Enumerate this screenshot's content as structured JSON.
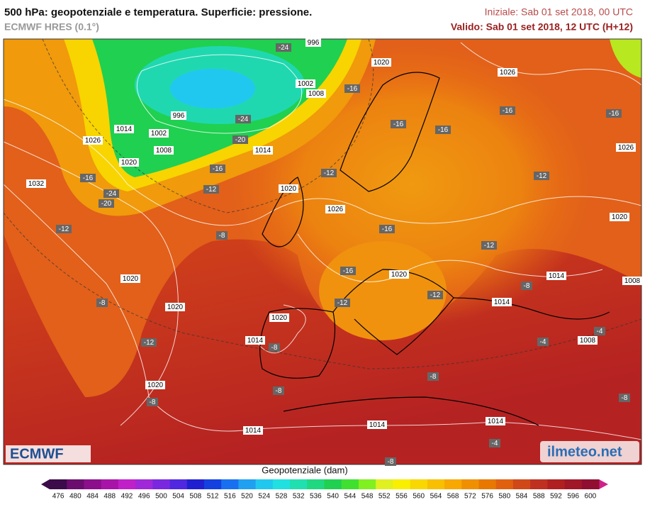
{
  "header": {
    "title": "500 hPa: geopotenziale e temperatura. Superficie: pressione.",
    "model": "ECMWF HRES (0.1°)",
    "init": "Iniziale: Sab 01 set 2018, 00 UTC",
    "valid": "Valido: Sab 01 set 2018, 12 UTC (H+12)"
  },
  "map": {
    "pressure_labels": [
      "996",
      "1020",
      "1026",
      "1002",
      "1008",
      "996",
      "1014",
      "1002",
      "1008",
      "1026",
      "1014",
      "1026",
      "1020",
      "1032",
      "1020",
      "1026",
      "1020",
      "1020",
      "1014",
      "1020",
      "1008",
      "1014",
      "1020",
      "1020",
      "1014",
      "1008",
      "1020",
      "1014",
      "1014",
      "1014"
    ],
    "temperature_labels": [
      "-24",
      "-16",
      "-16",
      "-16",
      "-16",
      "-16",
      "-24",
      "-20",
      "-16",
      "-12",
      "-12",
      "-12",
      "-16",
      "-24",
      "-20",
      "-12",
      "-8",
      "-16",
      "-12",
      "-16",
      "-12",
      "-12",
      "-8",
      "-8",
      "-12",
      "-8",
      "-4",
      "-4",
      "-8",
      "-8",
      "-8",
      "-8",
      "-4",
      "-8"
    ],
    "logos": [
      "ECMWF",
      "ilmeteo.net"
    ]
  },
  "colorbar": {
    "title": "Geopotenziale (dam)",
    "ticks": [
      476,
      480,
      484,
      488,
      492,
      496,
      500,
      504,
      508,
      512,
      516,
      520,
      524,
      528,
      532,
      536,
      540,
      544,
      548,
      552,
      556,
      560,
      564,
      568,
      572,
      576,
      580,
      584,
      588,
      592,
      596,
      600
    ],
    "colors": [
      "#3c0b4a",
      "#6a0d6e",
      "#8b0f8a",
      "#a814a8",
      "#c020c8",
      "#a028d8",
      "#7a28e0",
      "#5028e0",
      "#2020d0",
      "#1440e0",
      "#1870f0",
      "#20a0f0",
      "#20c8f0",
      "#20e0e0",
      "#20e0b0",
      "#20d880",
      "#20d050",
      "#40e030",
      "#80f020",
      "#e0f020",
      "#f8f000",
      "#f8d800",
      "#f8c000",
      "#f8a800",
      "#f09000",
      "#e87800",
      "#e06010",
      "#d04818",
      "#c03020",
      "#b02020",
      "#a01828",
      "#900f30"
    ]
  }
}
